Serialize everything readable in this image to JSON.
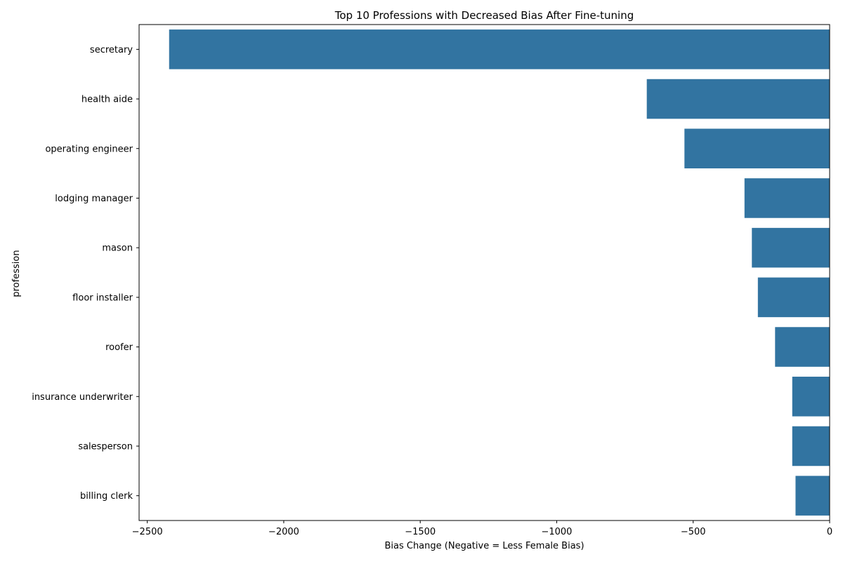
{
  "chart_data": {
    "type": "bar",
    "orientation": "horizontal",
    "title": "Top 10 Professions with Decreased Bias After Fine-tuning",
    "xlabel": "Bias Change (Negative = Less Female Bias)",
    "ylabel": "profession",
    "categories": [
      "secretary",
      "health aide",
      "operating engineer",
      "lodging manager",
      "mason",
      "floor installer",
      "roofer",
      "insurance underwriter",
      "salesperson",
      "billing clerk"
    ],
    "values": [
      -2420,
      -670,
      -532,
      -312,
      -285,
      -263,
      -200,
      -137,
      -137,
      -125
    ],
    "xlim": [
      -2530,
      0
    ],
    "xticks": [
      -2500,
      -2000,
      -1500,
      -1000,
      -500,
      0
    ],
    "xtick_labels": [
      "−2500",
      "−2000",
      "−1500",
      "−1000",
      "−500",
      "0"
    ],
    "grid": false,
    "bar_color": "#3274a1"
  }
}
